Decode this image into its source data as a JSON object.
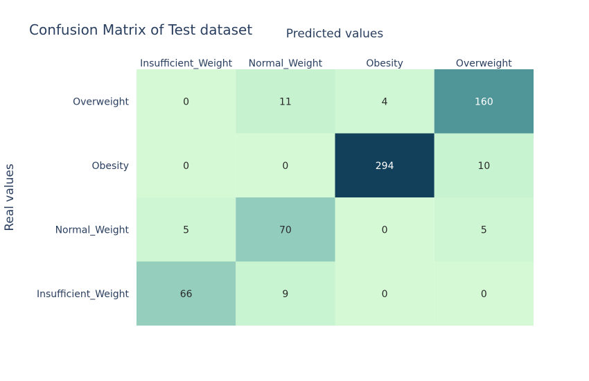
{
  "chart_data": {
    "type": "heatmap",
    "title": "Confusion Matrix of Test dataset",
    "xlabel": "Predicted values",
    "ylabel": "Real values",
    "x_categories": [
      "Insufficient_Weight",
      "Normal_Weight",
      "Obesity",
      "Overweight"
    ],
    "y_categories": [
      "Overweight",
      "Obesity",
      "Normal_Weight",
      "Insufficient_Weight"
    ],
    "values": [
      [
        0,
        11,
        4,
        160
      ],
      [
        0,
        0,
        294,
        10
      ],
      [
        5,
        70,
        0,
        5
      ],
      [
        66,
        9,
        0,
        0
      ]
    ],
    "value_range": [
      0,
      294
    ],
    "colorscale": [
      "#d4f9d4",
      "#c6f2d0",
      "#96cfbe",
      "#4f9598",
      "#123f5a"
    ],
    "x_axis_position": "top",
    "grid": false,
    "legend": "none"
  }
}
